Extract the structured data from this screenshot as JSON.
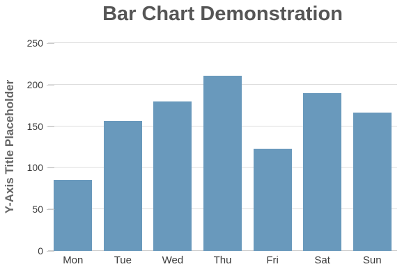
{
  "chart_data": {
    "type": "bar",
    "title": "Bar Chart Demonstration",
    "ylabel": "Y-Axis Title Placeholder",
    "xlabel": "",
    "categories": [
      "Mon",
      "Tue",
      "Wed",
      "Thu",
      "Fri",
      "Sat",
      "Sun"
    ],
    "values": [
      85,
      156,
      180,
      211,
      123,
      190,
      166
    ],
    "ylim": [
      0,
      250
    ],
    "yticks": [
      0,
      50,
      100,
      150,
      200,
      250
    ],
    "grid": true,
    "legend": "none",
    "colors": {
      "bar": "#6999bc",
      "title": "#555555",
      "axis_title": "#666666",
      "tick_label": "#3a3a3a",
      "gridline": "#dddddd",
      "axis_line": "#cfcfcf",
      "tick_mark": "#c9c9c9",
      "background": "#ffffff"
    }
  }
}
